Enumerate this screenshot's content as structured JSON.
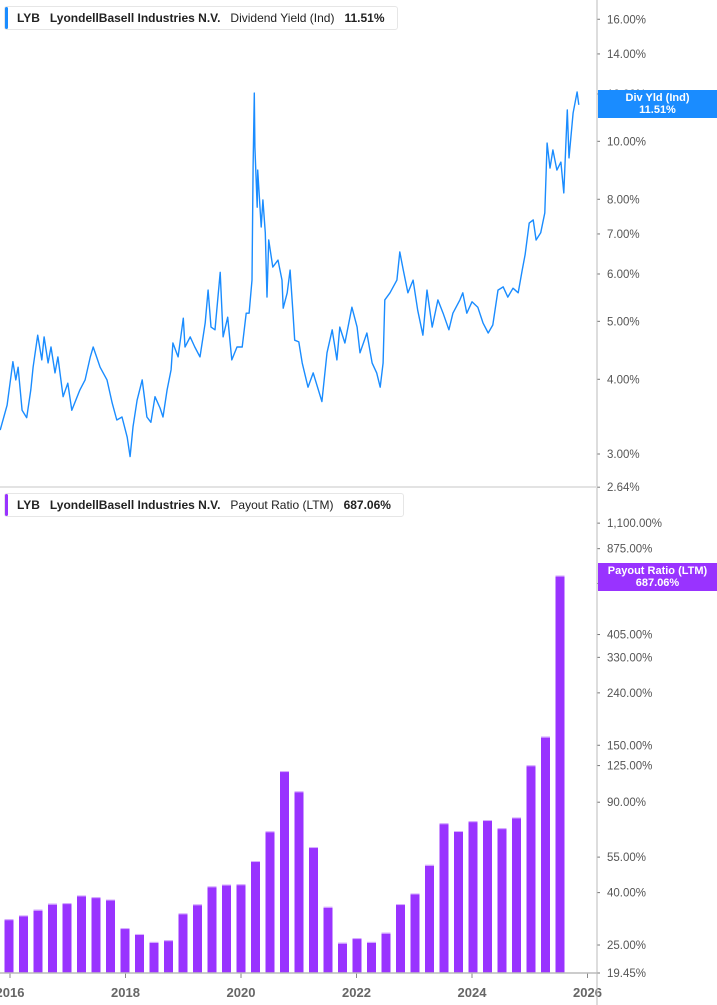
{
  "top_legend": {
    "ticker": "LYB",
    "name": "LyondellBasell Industries N.V.",
    "metric": "Dividend Yield (Ind)",
    "value": "11.51%"
  },
  "bottom_legend": {
    "ticker": "LYB",
    "name": "LyondellBasell Industries N.V.",
    "metric": "Payout Ratio (LTM)",
    "value": "687.06%"
  },
  "top_tag": {
    "label": "Div Yld (Ind)",
    "value": "11.51%"
  },
  "bottom_tag": {
    "label": "Payout Ratio (LTM)",
    "value": "687.06%"
  },
  "colors": {
    "yield": "#1a8cff",
    "payout": "#9933ff"
  },
  "chart_data": [
    {
      "type": "line",
      "series_name": "Dividend Yield (Ind)",
      "y_scale": "log",
      "ylim": [
        2.64,
        17.2
      ],
      "y_ticks": [
        2.64,
        3,
        4,
        5,
        6,
        7,
        8,
        10,
        12,
        14,
        16
      ],
      "y_tick_labels": [
        "2.64%",
        "3.00%",
        "4.00%",
        "5.00%",
        "6.00%",
        "7.00%",
        "8.00%",
        "10.00%",
        "12.00%",
        "14.00%",
        "16.00%"
      ],
      "x_unit": "year",
      "x": [
        2015.83,
        2015.95,
        2016.05,
        2016.1,
        2016.14,
        2016.21,
        2016.29,
        2016.36,
        2016.4,
        2016.48,
        2016.55,
        2016.59,
        2016.66,
        2016.71,
        2016.78,
        2016.83,
        2016.92,
        2017.0,
        2017.07,
        2017.21,
        2017.3,
        2017.39,
        2017.44,
        2017.56,
        2017.68,
        2017.77,
        2017.85,
        2017.94,
        2018.03,
        2018.08,
        2018.13,
        2018.2,
        2018.29,
        2018.37,
        2018.44,
        2018.51,
        2018.6,
        2018.65,
        2018.72,
        2018.79,
        2018.82,
        2018.91,
        2019.0,
        2019.03,
        2019.12,
        2019.2,
        2019.29,
        2019.38,
        2019.43,
        2019.48,
        2019.55,
        2019.64,
        2019.69,
        2019.77,
        2019.84,
        2019.93,
        2020.02,
        2020.09,
        2020.14,
        2020.19,
        2020.21,
        2020.23,
        2020.24,
        2020.28,
        2020.29,
        2020.35,
        2020.38,
        2020.42,
        2020.45,
        2020.48,
        2020.55,
        2020.64,
        2020.71,
        2020.73,
        2020.8,
        2020.85,
        2020.9,
        2020.93,
        2021.0,
        2021.06,
        2021.16,
        2021.25,
        2021.4,
        2021.49,
        2021.58,
        2021.66,
        2021.71,
        2021.8,
        2021.92,
        2022.01,
        2022.06,
        2022.18,
        2022.27,
        2022.35,
        2022.41,
        2022.46,
        2022.49,
        2022.58,
        2022.7,
        2022.75,
        2022.81,
        2022.89,
        2022.98,
        2023.06,
        2023.15,
        2023.22,
        2023.31,
        2023.41,
        2023.5,
        2023.6,
        2023.67,
        2023.79,
        2023.84,
        2023.91,
        2024.0,
        2024.1,
        2024.19,
        2024.28,
        2024.36,
        2024.45,
        2024.54,
        2024.62,
        2024.71,
        2024.8,
        2024.87,
        2024.92,
        2024.99,
        2025.06,
        2025.11,
        2025.19,
        2025.26,
        2025.3,
        2025.35,
        2025.4,
        2025.47,
        2025.54,
        2025.59,
        2025.65,
        2025.68,
        2025.75,
        2025.82,
        2025.85
      ],
      "y": [
        3.29,
        3.62,
        4.28,
        3.99,
        4.19,
        3.55,
        3.45,
        3.84,
        4.19,
        4.74,
        4.31,
        4.71,
        4.26,
        4.53,
        4.1,
        4.36,
        3.74,
        3.94,
        3.55,
        3.84,
        3.99,
        4.36,
        4.53,
        4.19,
        3.99,
        3.65,
        3.42,
        3.46,
        3.2,
        2.97,
        3.33,
        3.69,
        3.99,
        3.46,
        3.39,
        3.74,
        3.58,
        3.46,
        3.84,
        4.15,
        4.6,
        4.36,
        5.06,
        4.53,
        4.71,
        4.53,
        4.36,
        4.97,
        5.64,
        4.89,
        4.84,
        6.04,
        4.71,
        5.08,
        4.31,
        4.53,
        4.53,
        5.16,
        5.16,
        5.86,
        9.06,
        12.04,
        9.78,
        7.76,
        8.95,
        7.19,
        7.98,
        7.03,
        5.49,
        6.84,
        6.16,
        6.33,
        5.86,
        5.26,
        5.58,
        6.09,
        5.16,
        4.65,
        4.62,
        4.26,
        3.88,
        4.1,
        3.67,
        4.43,
        4.84,
        4.31,
        4.89,
        4.6,
        5.28,
        4.89,
        4.43,
        4.78,
        4.26,
        4.1,
        3.88,
        4.26,
        5.43,
        5.58,
        5.86,
        6.53,
        6.09,
        5.58,
        5.86,
        5.22,
        4.74,
        5.64,
        4.89,
        5.43,
        5.16,
        4.84,
        5.16,
        5.43,
        5.58,
        5.16,
        5.39,
        5.28,
        4.97,
        4.78,
        4.93,
        5.64,
        5.71,
        5.49,
        5.68,
        5.58,
        6.09,
        6.46,
        7.3,
        7.39,
        6.84,
        7.03,
        7.59,
        9.93,
        9.02,
        9.67,
        8.95,
        9.23,
        8.2,
        11.28,
        9.38,
        11.15,
        12.09,
        11.51
      ]
    },
    {
      "type": "bar",
      "series_name": "Payout Ratio (LTM)",
      "y_scale": "log",
      "ylim": [
        19.45,
        1300
      ],
      "y_ticks": [
        19.45,
        25,
        40,
        55,
        90,
        125,
        150,
        240,
        330,
        405,
        640,
        875,
        1100
      ],
      "y_tick_labels": [
        "19.45%",
        "25.00%",
        "40.00%",
        "55.00%",
        "90.00%",
        "125.00%",
        "150.00%",
        "240.00%",
        "330.00%",
        "405.00%",
        "640.00%",
        "875.00%",
        "1,100.00%"
      ],
      "categories": [
        "2015-Q4",
        "2016-Q1",
        "2016-Q2",
        "2016-Q3",
        "2016-Q4",
        "2017-Q1",
        "2017-Q2",
        "2017-Q3",
        "2017-Q4",
        "2018-Q1",
        "2018-Q2",
        "2018-Q3",
        "2018-Q4",
        "2019-Q1",
        "2019-Q2",
        "2019-Q3",
        "2019-Q4",
        "2020-Q1",
        "2020-Q2",
        "2020-Q3",
        "2020-Q4",
        "2021-Q1",
        "2021-Q2",
        "2021-Q3",
        "2021-Q4",
        "2022-Q1",
        "2022-Q2",
        "2022-Q3",
        "2022-Q4",
        "2023-Q1",
        "2023-Q2",
        "2023-Q3",
        "2023-Q4",
        "2024-Q1",
        "2024-Q2",
        "2024-Q3",
        "2024-Q4",
        "2025-Q1",
        "2025-Q2"
      ],
      "values": [
        31.5,
        32.6,
        34.3,
        36.2,
        36.4,
        39.0,
        38.4,
        37.6,
        29.1,
        27.6,
        25.7,
        26.1,
        33.2,
        36.0,
        42.3,
        43.0,
        43.1,
        53.1,
        69.3,
        119.0,
        99.2,
        60.2,
        35.2,
        25.5,
        26.6,
        25.7,
        27.9,
        36.1,
        39.7,
        51.3,
        74.5,
        69.5,
        75.9,
        76.7,
        71.3,
        78.5,
        125.3,
        162.0,
        687.06
      ]
    }
  ],
  "x_axis": {
    "ticks": [
      2016,
      2018,
      2020,
      2022,
      2024,
      2026
    ],
    "tick_labels": [
      "2016",
      "2018",
      "2020",
      "2022",
      "2024",
      "2026"
    ]
  }
}
